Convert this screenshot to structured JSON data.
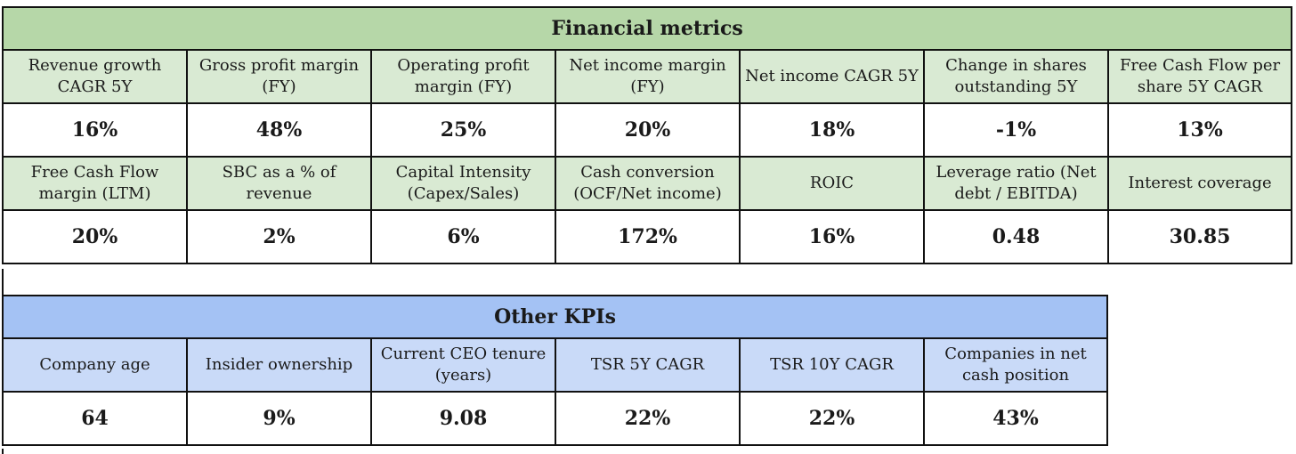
{
  "financial": {
    "title": "Financial metrics",
    "rows": [
      {
        "labels": [
          "Revenue growth CAGR 5Y",
          "Gross profit margin (FY)",
          "Operating profit margin (FY)",
          "Net income margin (FY)",
          "Net income CAGR 5Y",
          "Change in shares outstanding 5Y",
          "Free Cash Flow per share 5Y CAGR"
        ],
        "values": [
          "16%",
          "48%",
          "25%",
          "20%",
          "18%",
          "-1%",
          "13%"
        ]
      },
      {
        "labels": [
          "Free Cash Flow margin (LTM)",
          "SBC as a % of revenue",
          "Capital Intensity (Capex/Sales)",
          "Cash conversion (OCF/Net income)",
          "ROIC",
          "Leverage ratio (Net debt / EBITDA)",
          "Interest coverage"
        ],
        "values": [
          "20%",
          "2%",
          "6%",
          "172%",
          "16%",
          "0.48",
          "30.85"
        ]
      }
    ]
  },
  "kpis": {
    "title": "Other KPIs",
    "labels": [
      "Company age",
      "Insider ownership",
      "Current CEO tenure (years)",
      "TSR 5Y CAGR",
      "TSR 10Y CAGR",
      "Companies in net cash position"
    ],
    "values": [
      "64",
      "9%",
      "9.08",
      "22%",
      "22%",
      "43%"
    ]
  }
}
